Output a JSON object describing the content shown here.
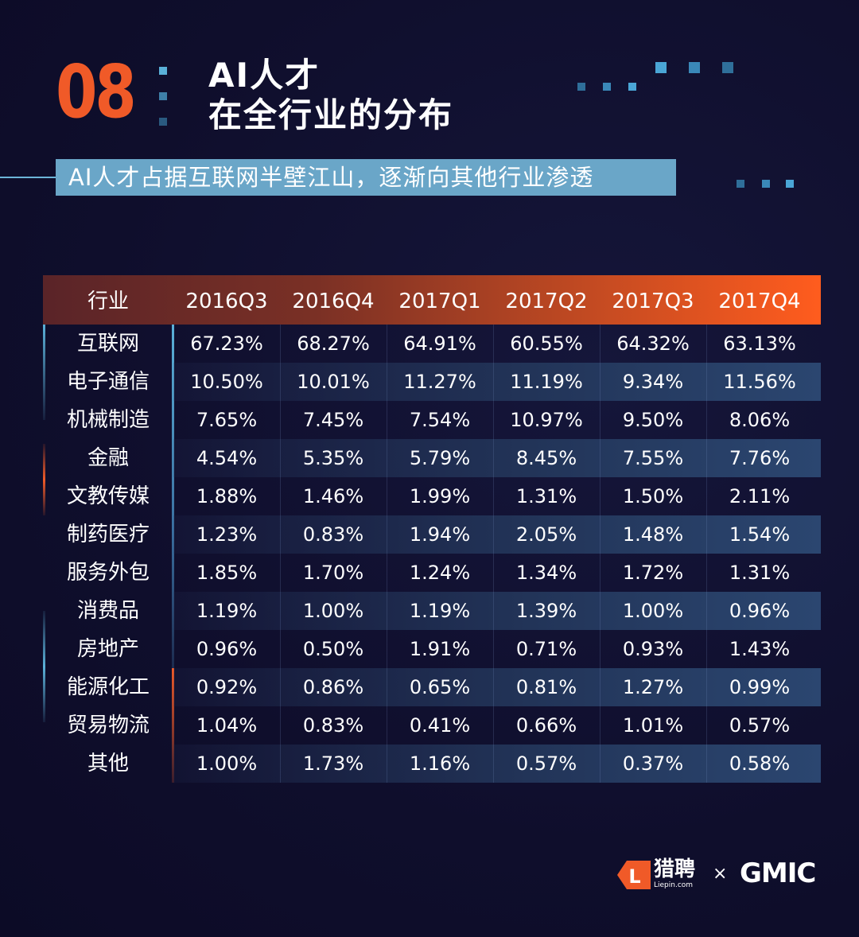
{
  "header": {
    "section_number": "08",
    "title_line1": "AI人才",
    "title_line2": "在全行业的分布",
    "subtitle": "AI人才占据互联网半壁江山，逐渐向其他行业渗透"
  },
  "colors": {
    "accent": "#f05a28",
    "subtitle_bg": "#6aa6c8",
    "dot_blue": "#5ab0d8",
    "background": "#0f0e2c"
  },
  "chart_data": {
    "type": "table",
    "columns": [
      "行业",
      "2016Q3",
      "2016Q4",
      "2017Q1",
      "2017Q2",
      "2017Q3",
      "2017Q4"
    ],
    "rows": [
      {
        "label": "互联网",
        "values": [
          "67.23%",
          "68.27%",
          "64.91%",
          "60.55%",
          "64.32%",
          "63.13%"
        ]
      },
      {
        "label": "电子通信",
        "values": [
          "10.50%",
          "10.01%",
          "11.27%",
          "11.19%",
          "9.34%",
          "11.56%"
        ]
      },
      {
        "label": "机械制造",
        "values": [
          "7.65%",
          "7.45%",
          "7.54%",
          "10.97%",
          "9.50%",
          "8.06%"
        ]
      },
      {
        "label": "金融",
        "values": [
          "4.54%",
          "5.35%",
          "5.79%",
          "8.45%",
          "7.55%",
          "7.76%"
        ]
      },
      {
        "label": "文教传媒",
        "values": [
          "1.88%",
          "1.46%",
          "1.99%",
          "1.31%",
          "1.50%",
          "2.11%"
        ]
      },
      {
        "label": "制药医疗",
        "values": [
          "1.23%",
          "0.83%",
          "1.94%",
          "2.05%",
          "1.48%",
          "1.54%"
        ]
      },
      {
        "label": "服务外包",
        "values": [
          "1.85%",
          "1.70%",
          "1.24%",
          "1.34%",
          "1.72%",
          "1.31%"
        ]
      },
      {
        "label": "消费品",
        "values": [
          "1.19%",
          "1.00%",
          "1.19%",
          "1.39%",
          "1.00%",
          "0.96%"
        ]
      },
      {
        "label": "房地产",
        "values": [
          "0.96%",
          "0.50%",
          "1.91%",
          "0.71%",
          "0.93%",
          "1.43%"
        ]
      },
      {
        "label": "能源化工",
        "values": [
          "0.92%",
          "0.86%",
          "0.65%",
          "0.81%",
          "1.27%",
          "0.99%"
        ]
      },
      {
        "label": "贸易物流",
        "values": [
          "1.04%",
          "0.83%",
          "0.41%",
          "0.66%",
          "1.01%",
          "0.57%"
        ]
      },
      {
        "label": "其他",
        "values": [
          "1.00%",
          "1.73%",
          "1.16%",
          "0.57%",
          "0.37%",
          "0.58%"
        ]
      }
    ]
  },
  "footer": {
    "liepin_cn": "猎聘",
    "liepin_en": "Liepin.com",
    "liepin_badge_letter": "L",
    "times": "×",
    "gmic": "GMIC"
  }
}
